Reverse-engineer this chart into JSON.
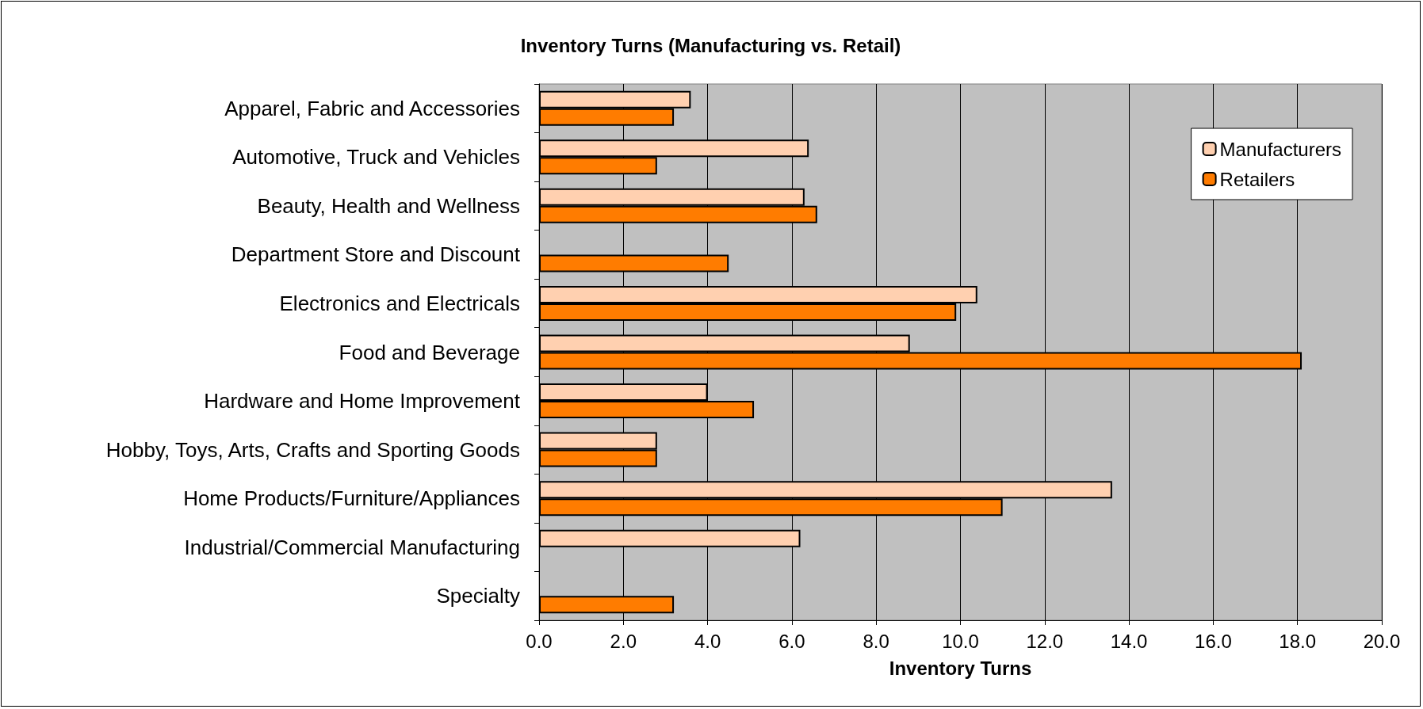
{
  "chart_data": {
    "type": "bar",
    "orientation": "horizontal",
    "title": "Inventory Turns (Manufacturing vs. Retail)",
    "xlabel": "Inventory Turns",
    "categories": [
      "Apparel, Fabric and Accessories",
      "Automotive, Truck and Vehicles",
      "Beauty, Health and Wellness",
      "Department Store and Discount",
      "Electronics and Electricals",
      "Food and Beverage",
      "Hardware and Home Improvement",
      "Hobby, Toys, Arts, Crafts and Sporting Goods",
      "Home Products/Furniture/Appliances",
      "Industrial/Commercial Manufacturing",
      "Specialty"
    ],
    "series": [
      {
        "name": "Manufacturers",
        "color": "#ffd0b0",
        "values": [
          3.6,
          6.4,
          6.3,
          null,
          10.4,
          8.8,
          4.0,
          2.8,
          13.6,
          6.2,
          null
        ]
      },
      {
        "name": "Retailers",
        "color": "#ff7c00",
        "values": [
          3.2,
          2.8,
          6.6,
          4.5,
          9.9,
          18.1,
          5.1,
          2.8,
          11.0,
          null,
          3.2
        ]
      }
    ],
    "xlim": [
      0,
      20
    ],
    "xticks": [
      {
        "value": 0,
        "label": "0.0"
      },
      {
        "value": 2,
        "label": "2.0"
      },
      {
        "value": 4,
        "label": "4.0"
      },
      {
        "value": 6,
        "label": "6.0"
      },
      {
        "value": 8,
        "label": "8.0"
      },
      {
        "value": 10,
        "label": "10.0"
      },
      {
        "value": 12,
        "label": "12.0"
      },
      {
        "value": 14,
        "label": "14.0"
      },
      {
        "value": 16,
        "label": "16.0"
      },
      {
        "value": 18,
        "label": "18.0"
      },
      {
        "value": 20,
        "label": "20.0"
      }
    ],
    "grid": "x",
    "legend": "top right"
  }
}
